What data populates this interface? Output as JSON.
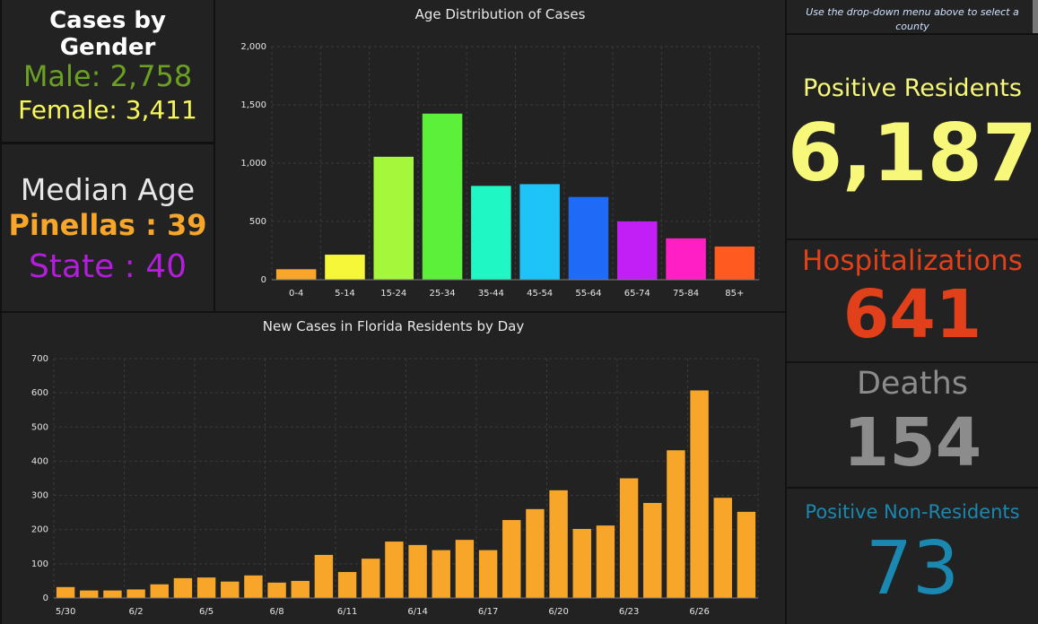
{
  "gender": {
    "title": "Cases by Gender",
    "male_label": "Male: 2,758",
    "female_label": "Female: 3,411"
  },
  "median_age": {
    "title": "Median Age",
    "pinellas_label": "Pinellas : 39",
    "state_label": "State : 40"
  },
  "hint_text": "Use the drop-down menu above to select a county",
  "kpis": {
    "positive_residents": {
      "label": "Positive Residents",
      "value": "6,187",
      "color": "#f7f77a"
    },
    "hospitalizations": {
      "label": "Hospitalizations",
      "value": "641",
      "color": "#e2401a"
    },
    "deaths": {
      "label": "Deaths",
      "value": "154",
      "color": "#8c8c8c"
    },
    "positive_non_residents": {
      "label": "Positive Non-Residents",
      "value": "73",
      "color": "#1a88b0"
    }
  },
  "chart_data": [
    {
      "type": "bar",
      "title": "Age Distribution of Cases",
      "categories": [
        "0-4",
        "5-14",
        "15-24",
        "25-34",
        "35-44",
        "45-54",
        "55-64",
        "65-74",
        "75-84",
        "85+"
      ],
      "values": [
        90,
        215,
        1055,
        1425,
        805,
        820,
        710,
        500,
        355,
        285
      ],
      "colors": [
        "#f7a62a",
        "#f7f73a",
        "#a4f73a",
        "#5cf03a",
        "#1ff7c4",
        "#1ec3f7",
        "#1f6af7",
        "#c21ff7",
        "#ff1fc4",
        "#ff5a1f"
      ],
      "yticks": [
        "0",
        "500",
        "1,000",
        "1,500",
        "2,000"
      ],
      "ylim": [
        0,
        2000
      ],
      "grid": true
    },
    {
      "type": "bar",
      "title": "New Cases in Florida Residents by Day",
      "x": [
        "5/30",
        "5/31",
        "6/1",
        "6/2",
        "6/3",
        "6/4",
        "6/5",
        "6/6",
        "6/7",
        "6/8",
        "6/9",
        "6/10",
        "6/11",
        "6/12",
        "6/13",
        "6/14",
        "6/15",
        "6/16",
        "6/17",
        "6/18",
        "6/19",
        "6/20",
        "6/21",
        "6/22",
        "6/23",
        "6/24",
        "6/25",
        "6/26",
        "6/27",
        "6/28"
      ],
      "values": [
        32,
        22,
        22,
        25,
        40,
        58,
        60,
        48,
        66,
        45,
        50,
        126,
        76,
        115,
        165,
        155,
        140,
        170,
        140,
        228,
        260,
        315,
        202,
        212,
        350,
        278,
        432,
        607,
        293,
        252
      ],
      "xtick_labels": [
        "5/30",
        "6/2",
        "6/5",
        "6/8",
        "6/11",
        "6/14",
        "6/17",
        "6/20",
        "6/23",
        "6/26"
      ],
      "color": "#f7a62a",
      "yticks": [
        "0",
        "100",
        "200",
        "300",
        "400",
        "500",
        "600",
        "700"
      ],
      "ylim": [
        0,
        700
      ],
      "grid": true
    }
  ]
}
